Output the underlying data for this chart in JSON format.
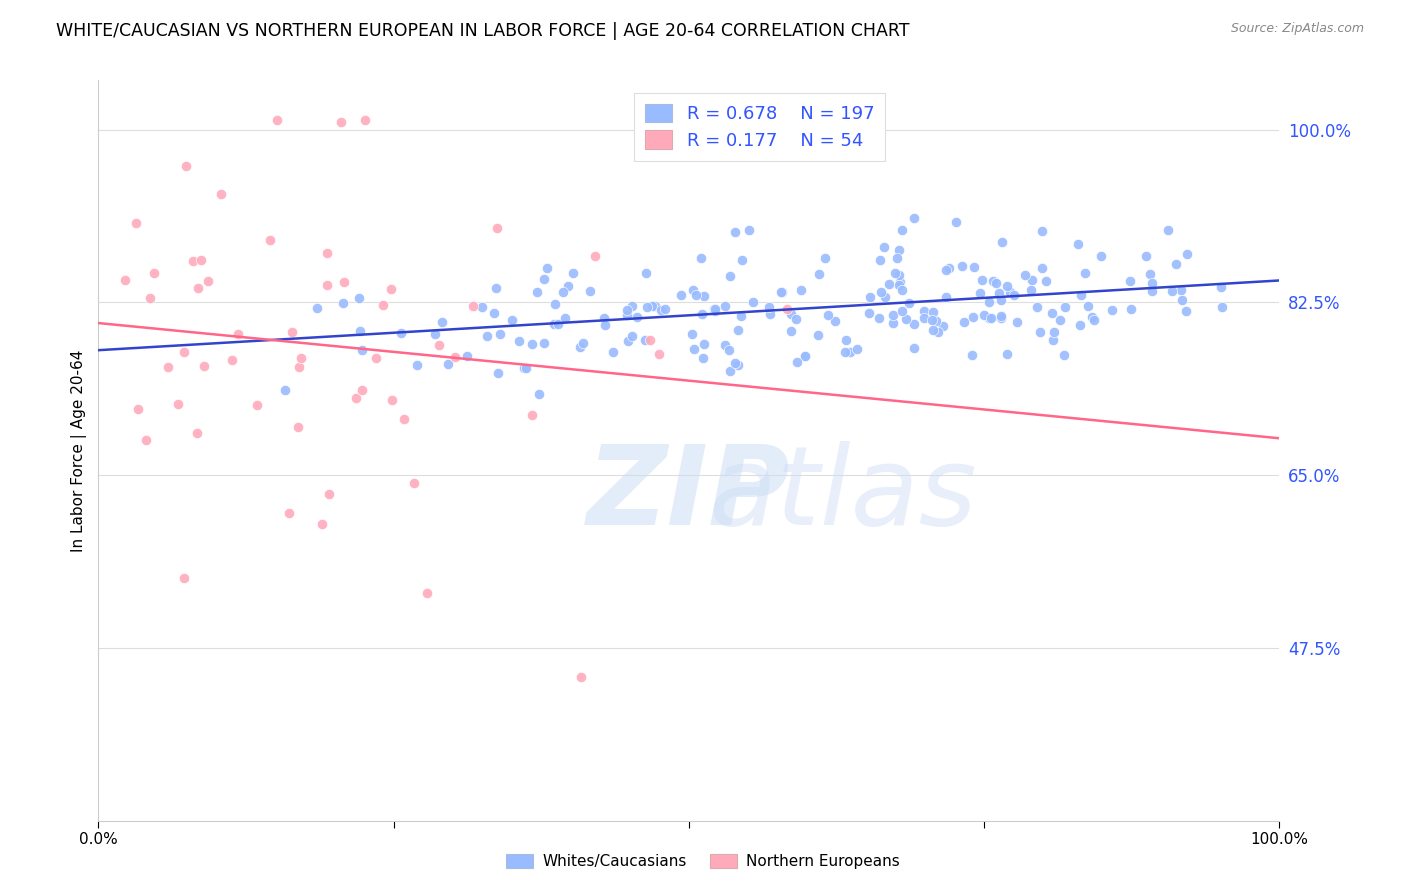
{
  "title": "WHITE/CAUCASIAN VS NORTHERN EUROPEAN IN LABOR FORCE | AGE 20-64 CORRELATION CHART",
  "source": "Source: ZipAtlas.com",
  "ylabel": "In Labor Force | Age 20-64",
  "ytick_labels": [
    "100.0%",
    "82.5%",
    "65.0%",
    "47.5%"
  ],
  "ytick_values": [
    1.0,
    0.825,
    0.65,
    0.475
  ],
  "xlim": [
    0.0,
    1.0
  ],
  "ylim": [
    0.3,
    1.05
  ],
  "blue_R": 0.678,
  "blue_N": 197,
  "pink_R": 0.177,
  "pink_N": 54,
  "blue_color": "#99BBFF",
  "pink_color": "#FFAABB",
  "blue_line_color": "#3344CC",
  "pink_line_color": "#FF6688",
  "watermark_zip": "ZIP",
  "watermark_atlas": "atlas",
  "watermark_color": "#CCDDF8",
  "legend_label_blue": "Whites/Caucasians",
  "legend_label_pink": "Northern Europeans",
  "background_color": "#FFFFFF",
  "grid_color": "#DDDDDD",
  "title_fontsize": 12.5,
  "source_fontsize": 9,
  "axis_label_fontsize": 11,
  "tick_color_y": "#3355FF",
  "legend_text_color_blue": "#3355FF",
  "legend_text_color_pink": "#FF3366",
  "seed": 42
}
